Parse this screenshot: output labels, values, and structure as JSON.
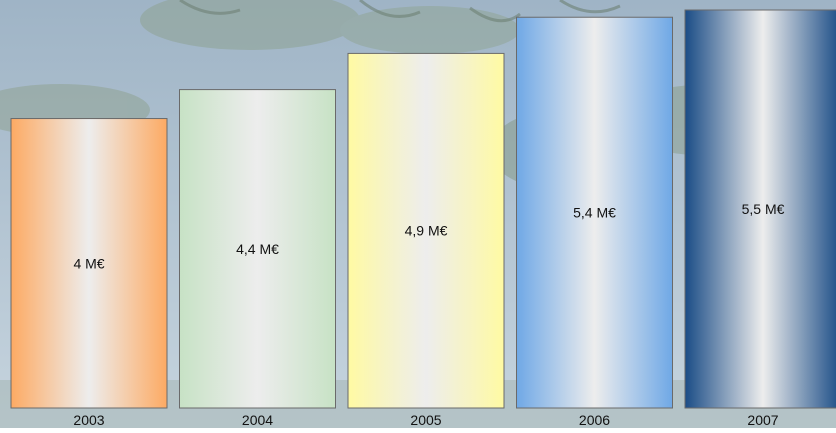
{
  "chart_data": {
    "type": "bar",
    "categories": [
      "2003",
      "2004",
      "2005",
      "2006",
      "2007"
    ],
    "values": [
      4.0,
      4.4,
      4.9,
      5.4,
      5.5
    ],
    "data_labels": [
      "4 M€",
      "4,4 M€",
      "4,9 M€",
      "5,4 M€",
      "5,5 M€"
    ],
    "title": "",
    "xlabel": "",
    "ylabel": "",
    "ylim": [
      0,
      5.5
    ],
    "grid": false,
    "legend": "none",
    "bar_colors": [
      "#FDAA63",
      "#C7E2C5",
      "#FFFAA3",
      "#6FA8E6",
      "#1A4C86"
    ],
    "background_colors": {
      "sky_top": "#9FB4C6",
      "sky_bottom": "#C6D4DE",
      "foliage": "#7F9582"
    }
  }
}
